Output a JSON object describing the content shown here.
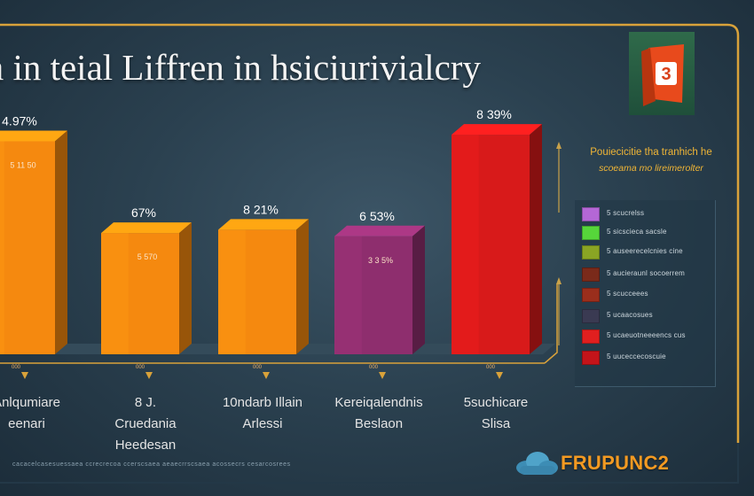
{
  "chart_data": {
    "type": "bar",
    "title": "a in teial Liffren in hsiciurivialcry",
    "categories": [
      "Anlqumiare eenari",
      "8 J. Cruedania Heedesan",
      "10ndarb Illain Arlessi",
      "Kereiqalendnis Beslaon",
      "5suchicare Slisa"
    ],
    "values": [
      65,
      37,
      38,
      36,
      67
    ],
    "value_labels": [
      "4.97%",
      "67%",
      "8 21%",
      "6 53%",
      "8 39%"
    ],
    "inner_labels": [
      "5 11 50",
      "5 570",
      "",
      "3 3 5%",
      ""
    ],
    "baseline_labels": [
      "000",
      "000",
      "000",
      "000",
      "000"
    ],
    "colors": [
      "#f5890f",
      "#f5890f",
      "#f5890f",
      "#8e2e6e",
      "#d81a1a"
    ],
    "ylim": [
      0,
      100
    ],
    "grid": false,
    "legend_placement": "right"
  },
  "legend": {
    "title_line1": "Pouiecicitie tha tranhich he",
    "title_line2": "scoeama mo lireimerolter",
    "items": [
      {
        "label": "5 scucrelss",
        "color": "#b467d6"
      },
      {
        "label": "5 sicscieca sacsle",
        "color": "#56d63a"
      },
      {
        "label": "5 auseerecelcnies cine",
        "color": "#8aa524"
      },
      {
        "label": "5 aucieraunl socoerrem",
        "color": "#7a2a1a"
      },
      {
        "label": "5 scucceees",
        "color": "#9a2e1c"
      },
      {
        "label": "5 ucaacosues",
        "color": "#3a3a52"
      },
      {
        "label": "5 ucaeuotneeeencs cus",
        "color": "#e01f1f"
      },
      {
        "label": "5 uuceccecoscuie",
        "color": "#c4141a"
      }
    ]
  },
  "logo": {
    "glyph": "3"
  },
  "footer": {
    "footnote": "cacacelcasesuessaea ccrecrecoa ccerscsaea aeaecrrscsaea acossecrs cesarcosrees",
    "brand": "FRUPUNC2"
  }
}
